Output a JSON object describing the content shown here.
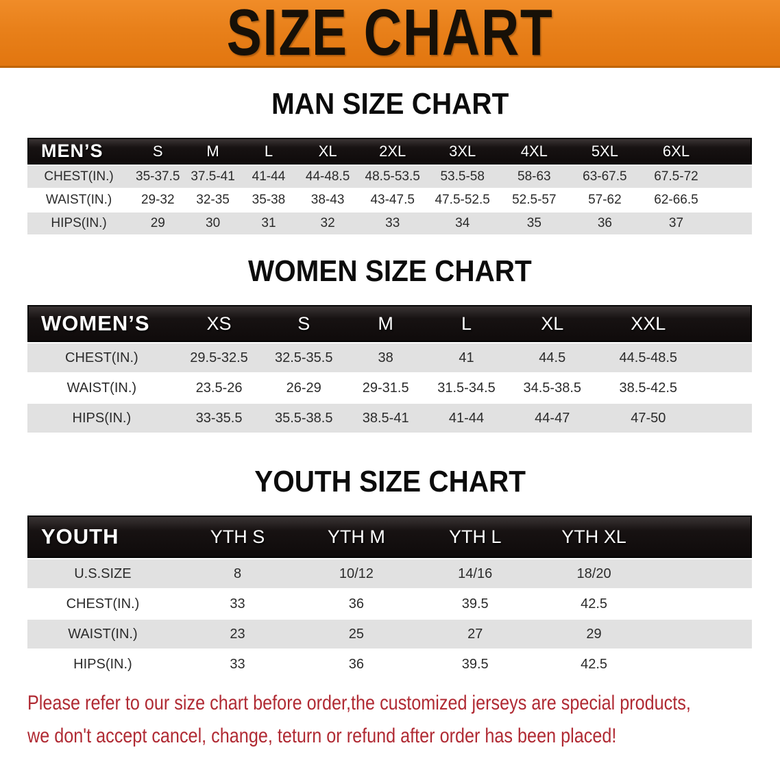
{
  "banner": {
    "title": "SIZE CHART"
  },
  "sections": [
    {
      "id": "men",
      "heading": "MAN SIZE CHART",
      "table": {
        "header_label": "MEN’S",
        "columns": [
          "S",
          "M",
          "L",
          "XL",
          "2XL",
          "3XL",
          "4XL",
          "5XL",
          "6XL"
        ],
        "rows": [
          {
            "label": "CHEST(IN.)",
            "values": [
              "35-37.5",
              "37.5-41",
              "41-44",
              "44-48.5",
              "48.5-53.5",
              "53.5-58",
              "58-63",
              "63-67.5",
              "67.5-72"
            ]
          },
          {
            "label": "WAIST(IN.)",
            "values": [
              "29-32",
              "32-35",
              "35-38",
              "38-43",
              "43-47.5",
              "47.5-52.5",
              "52.5-57",
              "57-62",
              "62-66.5"
            ]
          },
          {
            "label": "HIPS(IN.)",
            "values": [
              "29",
              "30",
              "31",
              "32",
              "33",
              "34",
              "35",
              "36",
              "37"
            ]
          }
        ]
      }
    },
    {
      "id": "women",
      "heading": "WOMEN SIZE CHART",
      "table": {
        "header_label": "WOMEN’S",
        "columns": [
          "XS",
          "S",
          "M",
          "L",
          "XL",
          "XXL"
        ],
        "rows": [
          {
            "label": "CHEST(IN.)",
            "values": [
              "29.5-32.5",
              "32.5-35.5",
              "38",
              "41",
              "44.5",
              "44.5-48.5"
            ]
          },
          {
            "label": "WAIST(IN.)",
            "values": [
              "23.5-26",
              "26-29",
              "29-31.5",
              "31.5-34.5",
              "34.5-38.5",
              "38.5-42.5"
            ]
          },
          {
            "label": "HIPS(IN.)",
            "values": [
              "33-35.5",
              "35.5-38.5",
              "38.5-41",
              "41-44",
              "44-47",
              "47-50"
            ]
          }
        ]
      }
    },
    {
      "id": "youth",
      "heading": "YOUTH SIZE CHART",
      "table": {
        "header_label": "YOUTH",
        "columns": [
          "YTH S",
          "YTH M",
          "YTH L",
          "YTH XL"
        ],
        "rows": [
          {
            "label": "U.S.SIZE",
            "values": [
              "8",
              "10/12",
              "14/16",
              "18/20"
            ]
          },
          {
            "label": "CHEST(IN.)",
            "values": [
              "33",
              "36",
              "39.5",
              "42.5"
            ]
          },
          {
            "label": "WAIST(IN.)",
            "values": [
              "23",
              "25",
              "27",
              "29"
            ]
          },
          {
            "label": "HIPS(IN.)",
            "values": [
              "33",
              "36",
              "39.5",
              "42.5"
            ]
          }
        ]
      }
    }
  ],
  "disclaimer": {
    "line1": "Please refer to our size chart before order,the customized jerseys are special products,",
    "line2": "we don't accept cancel, change, teturn or refund after order has been placed!"
  },
  "colors": {
    "banner_bg": "#e8801a",
    "banner_border": "#bf6408",
    "header_bar_bg": "#171212",
    "header_bar_text": "#ffffff",
    "row_stripe": "#e1e1e1",
    "table_text": "#2b2b2b",
    "heading_text": "#0c0c0c",
    "disclaimer_text": "#b02a33",
    "page_bg": "#ffffff"
  }
}
